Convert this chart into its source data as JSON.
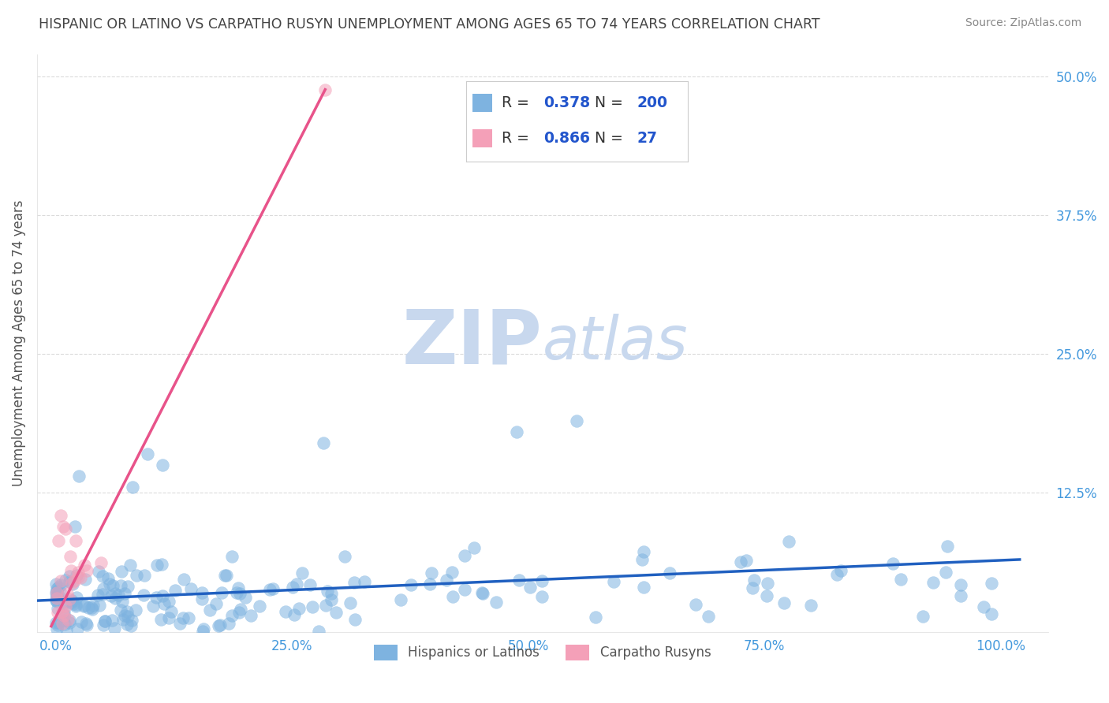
{
  "title": "HISPANIC OR LATINO VS CARPATHO RUSYN UNEMPLOYMENT AMONG AGES 65 TO 74 YEARS CORRELATION CHART",
  "source": "Source: ZipAtlas.com",
  "ylabel": "Unemployment Among Ages 65 to 74 years",
  "ylim": [
    0,
    0.52
  ],
  "xlim": [
    -0.02,
    1.05
  ],
  "yticks": [
    0.0,
    0.125,
    0.25,
    0.375,
    0.5
  ],
  "ytick_labels": [
    "",
    "12.5%",
    "25.0%",
    "37.5%",
    "50.0%"
  ],
  "xticks": [
    0.0,
    0.25,
    0.5,
    0.75,
    1.0
  ],
  "xtick_labels": [
    "0.0%",
    "25.0%",
    "50.0%",
    "75.0%",
    "100.0%"
  ],
  "series1_color": "#7eb3e0",
  "series2_color": "#f4a0b8",
  "trendline1_color": "#2060c0",
  "trendline2_color": "#e8538a",
  "legend_R1": "0.378",
  "legend_N1": "200",
  "legend_R2": "0.866",
  "legend_N2": "27",
  "watermark_zip": "ZIP",
  "watermark_atlas": "atlas",
  "watermark_color": "#c8d8ee",
  "background_color": "#ffffff",
  "title_color": "#444444",
  "source_color": "#888888",
  "axis_label_color": "#555555",
  "tick_color": "#4499dd",
  "grid_color": "#cccccc",
  "legend_R_color": "#2255cc",
  "legend_N_color": "#2255cc"
}
